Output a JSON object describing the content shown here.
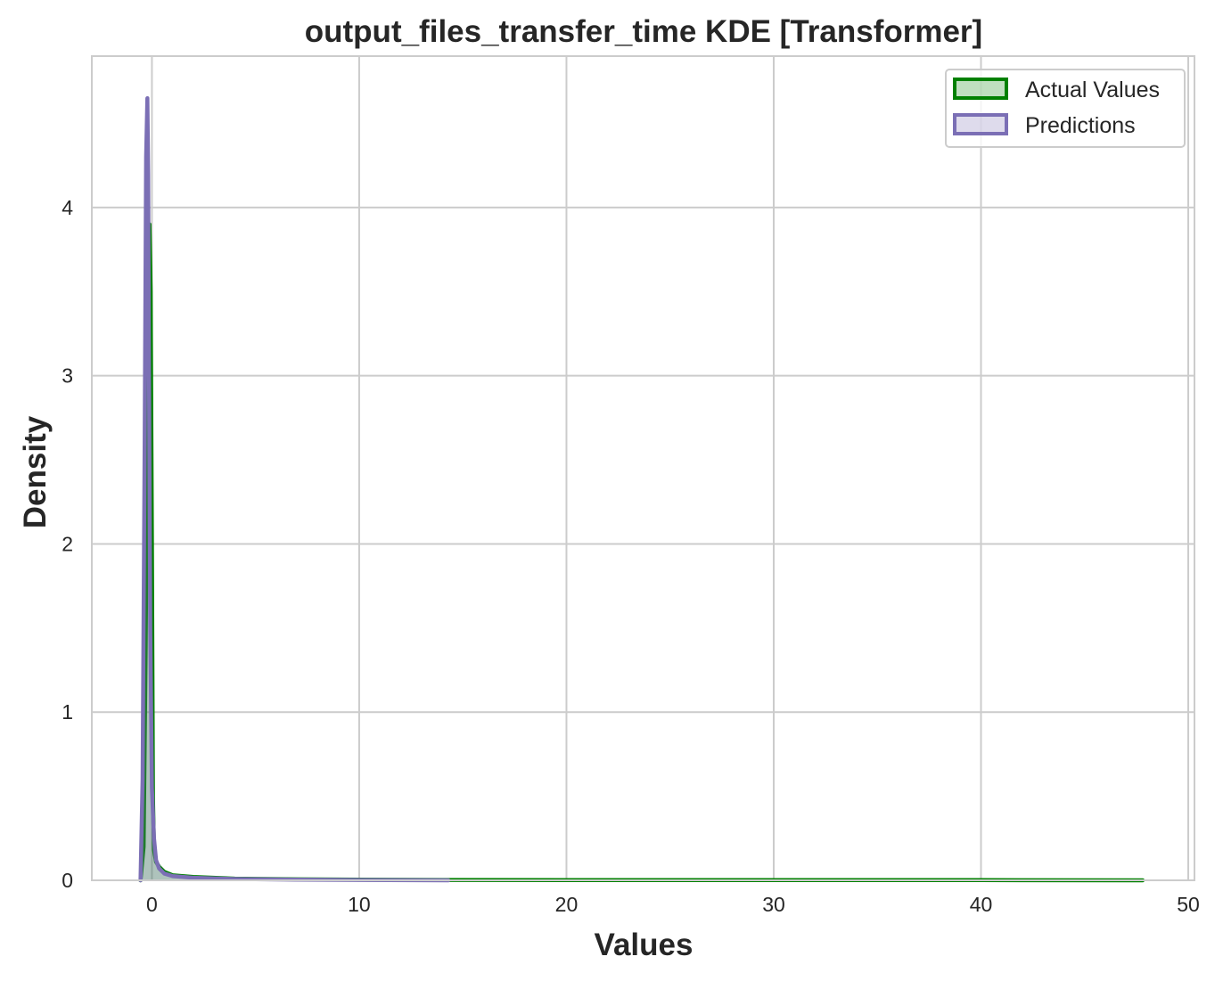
{
  "chart_data": {
    "type": "area",
    "title": "output_files_transfer_time KDE [Transformer]",
    "xlabel": "Values",
    "ylabel": "Density",
    "xlim": [
      -2.9,
      50.3
    ],
    "ylim": [
      0,
      4.9
    ],
    "x_ticks": [
      0,
      10,
      20,
      30,
      40,
      50
    ],
    "y_ticks": [
      0,
      1,
      2,
      3,
      4
    ],
    "grid": true,
    "legend_position": "top-right",
    "series": [
      {
        "name": "Actual Values",
        "color": "#008000",
        "fill_opacity": 0.25,
        "x": [
          -0.55,
          -0.4,
          -0.3,
          -0.2,
          -0.12,
          -0.06,
          0.0,
          0.05,
          0.1,
          0.2,
          0.35,
          0.6,
          1.0,
          2.0,
          4.0,
          7.0,
          10.0,
          14.0,
          20.0,
          30.0,
          40.0,
          47.8
        ],
        "y": [
          0.0,
          0.2,
          1.4,
          3.0,
          3.9,
          3.5,
          2.0,
          0.5,
          0.18,
          0.11,
          0.08,
          0.05,
          0.03,
          0.02,
          0.01,
          0.006,
          0.004,
          0.002,
          0.001,
          0.001,
          0.001,
          0.0
        ]
      },
      {
        "name": "Predictions",
        "color": "#7b6fb5",
        "fill_opacity": 0.25,
        "x": [
          -0.55,
          -0.45,
          -0.35,
          -0.28,
          -0.22,
          -0.18,
          -0.14,
          -0.08,
          0.0,
          0.1,
          0.2,
          0.35,
          0.6,
          1.0,
          2.0,
          4.0,
          7.0,
          10.0,
          14.3
        ],
        "y": [
          0.0,
          0.6,
          2.6,
          4.3,
          4.65,
          4.2,
          3.0,
          1.5,
          0.55,
          0.25,
          0.12,
          0.07,
          0.04,
          0.025,
          0.015,
          0.008,
          0.004,
          0.002,
          0.0
        ]
      }
    ]
  }
}
